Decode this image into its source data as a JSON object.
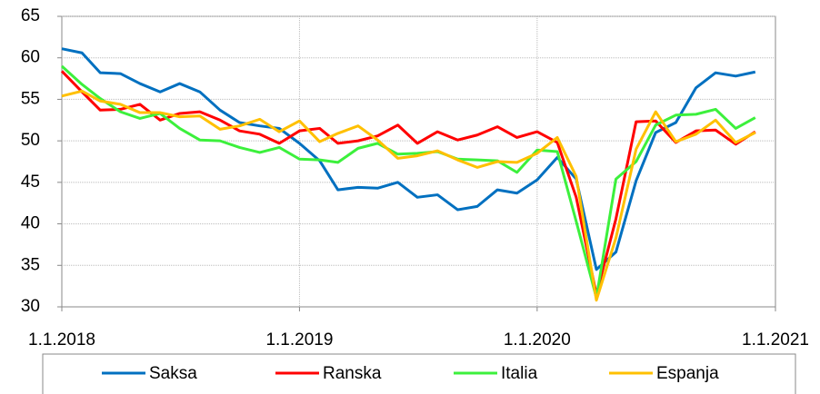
{
  "chart_data": {
    "type": "line",
    "x": [
      "2018-01-01",
      "2018-02-01",
      "2018-03-01",
      "2018-04-01",
      "2018-05-01",
      "2018-06-01",
      "2018-07-01",
      "2018-08-01",
      "2018-09-01",
      "2018-10-01",
      "2018-11-01",
      "2018-12-01",
      "2019-01-01",
      "2019-02-01",
      "2019-03-01",
      "2019-04-01",
      "2019-05-01",
      "2019-06-01",
      "2019-07-01",
      "2019-08-01",
      "2019-09-01",
      "2019-10-01",
      "2019-11-01",
      "2019-12-01",
      "2020-01-01",
      "2020-02-01",
      "2020-03-01",
      "2020-04-01",
      "2020-05-01",
      "2020-06-01",
      "2020-07-01",
      "2020-08-01",
      "2020-09-01",
      "2020-10-01",
      "2020-11-01",
      "2020-12-01"
    ],
    "series": [
      {
        "name": "Saksa",
        "color": "#0070c0",
        "values": [
          61.1,
          60.6,
          58.2,
          58.1,
          56.9,
          55.9,
          56.9,
          55.9,
          53.7,
          52.2,
          51.8,
          51.5,
          49.7,
          47.6,
          44.1,
          44.4,
          44.3,
          45.0,
          43.2,
          43.5,
          41.7,
          42.1,
          44.1,
          43.7,
          45.3,
          48.0,
          45.4,
          34.5,
          36.6,
          45.2,
          51.0,
          52.2,
          56.4,
          58.2,
          57.8,
          58.3
        ]
      },
      {
        "name": "Ranska",
        "color": "#ff0000",
        "values": [
          58.4,
          55.9,
          53.7,
          53.8,
          54.4,
          52.5,
          53.3,
          53.5,
          52.5,
          51.2,
          50.8,
          49.7,
          51.2,
          51.5,
          49.7,
          50.0,
          50.6,
          51.9,
          49.7,
          51.1,
          50.1,
          50.7,
          51.7,
          50.4,
          51.1,
          49.8,
          43.2,
          31.5,
          40.6,
          52.3,
          52.4,
          49.8,
          51.2,
          51.3,
          49.6,
          51.1
        ]
      },
      {
        "name": "Italia",
        "color": "#3cf03c",
        "values": [
          59.0,
          56.8,
          55.1,
          53.5,
          52.7,
          53.3,
          51.5,
          50.1,
          50.0,
          49.2,
          48.6,
          49.2,
          47.8,
          47.7,
          47.4,
          49.1,
          49.7,
          48.4,
          48.5,
          48.7,
          47.8,
          47.7,
          47.6,
          46.2,
          48.9,
          48.7,
          40.3,
          31.1,
          45.4,
          47.5,
          51.9,
          53.1,
          53.2,
          53.8,
          51.5,
          52.8
        ]
      },
      {
        "name": "Espanja",
        "color": "#ffc000",
        "values": [
          55.4,
          56.0,
          54.8,
          54.4,
          53.4,
          53.4,
          52.9,
          53.0,
          51.4,
          51.8,
          52.6,
          51.1,
          52.4,
          49.9,
          50.9,
          51.8,
          50.1,
          47.9,
          48.2,
          48.8,
          47.7,
          46.8,
          47.5,
          47.4,
          48.5,
          50.4,
          45.7,
          30.8,
          38.3,
          49.0,
          53.5,
          49.9,
          50.8,
          52.5,
          49.8,
          51.0
        ]
      }
    ],
    "xlim": [
      "2018-01-01",
      "2021-01-01"
    ],
    "xticks": [
      {
        "value": "2018-01-01",
        "label": "1.1.2018"
      },
      {
        "value": "2019-01-01",
        "label": "1.1.2019"
      },
      {
        "value": "2020-01-01",
        "label": "1.1.2020"
      },
      {
        "value": "2021-01-01",
        "label": "1.1.2021"
      }
    ],
    "ylim": [
      30,
      65
    ],
    "yticks": [
      30,
      35,
      40,
      45,
      50,
      55,
      60,
      65
    ],
    "grid": true,
    "legend": "bottom"
  }
}
